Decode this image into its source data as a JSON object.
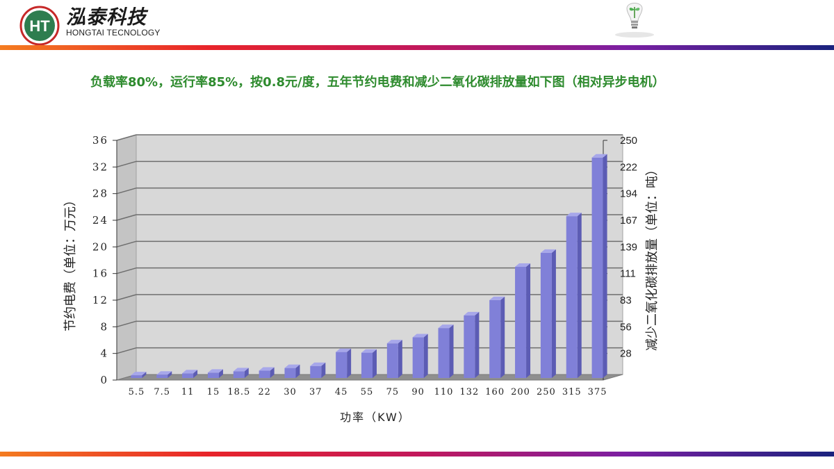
{
  "header": {
    "logo_letters": "HT",
    "brand_cn": "泓泰科技",
    "brand_en": "HONGTAI TECNOLOGY"
  },
  "title": "负载率80%，运行率85%，按0.8元/度，五年节约电费和减少二氧化碳排放量如下图（相对异步电机）",
  "colors": {
    "bar": "#8080d8",
    "bar_light": "#a7a7ea",
    "bar_dark": "#5c5cb4",
    "plot_bg": "#d8d8d8",
    "title": "#2e8b2e"
  },
  "chart_data": {
    "type": "bar",
    "categories": [
      "5.5",
      "7.5",
      "11",
      "15",
      "18.5",
      "22",
      "30",
      "37",
      "45",
      "55",
      "75",
      "90",
      "110",
      "132",
      "160",
      "200",
      "250",
      "315",
      "375"
    ],
    "values": [
      0.4,
      0.5,
      0.7,
      0.8,
      1.0,
      1.1,
      1.5,
      1.8,
      3.9,
      3.8,
      5.2,
      6.1,
      7.5,
      9.4,
      11.7,
      16.7,
      18.8,
      24.3,
      33.1
    ],
    "xlabel": "功率（KW）",
    "ylabel": "节约电费（单位：万元）",
    "y2label": "减少二氧化碳排放量（单位：吨）",
    "ylim": [
      0,
      36
    ],
    "yticks": [
      "0",
      "4",
      "8",
      "12",
      "16",
      "20",
      "24",
      "28",
      "32",
      "36"
    ],
    "y2ticks": [
      "28",
      "56",
      "83",
      "111",
      "139",
      "167",
      "194",
      "222",
      "250"
    ],
    "grid": true,
    "view": "3d"
  }
}
